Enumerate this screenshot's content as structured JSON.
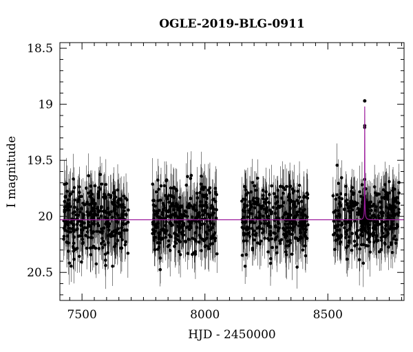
{
  "chart_data": {
    "type": "scatter",
    "title": "OGLE-2019-BLG-0911",
    "xlabel": "HJD - 2450000",
    "ylabel": "I magnitude",
    "xlim": [
      7410,
      8810
    ],
    "ylim": [
      18.45,
      20.75
    ],
    "y_inverted": true,
    "x_ticks": [
      7500,
      8000,
      8500
    ],
    "y_ticks": [
      18.5,
      19,
      19.5,
      20,
      20.5
    ],
    "x_tick_labels": [
      "7500",
      "8000",
      "8500"
    ],
    "y_tick_labels": [
      "18.5",
      "19",
      "19.5",
      "20",
      "20.5"
    ],
    "grid": false,
    "colors": {
      "points": "#000000",
      "model": "#9c1c9c"
    },
    "series": [
      {
        "kind": "photometry",
        "error_bars": true,
        "seasons": [
          {
            "x_range": [
              7425,
              7690
            ],
            "baseline_mag": 20.02,
            "scatter_mag": 0.2,
            "typical_error": 0.18
          },
          {
            "x_range": [
              7785,
              8050
            ],
            "baseline_mag": 20.02,
            "scatter_mag": 0.2,
            "typical_error": 0.18
          },
          {
            "x_range": [
              8150,
              8420
            ],
            "baseline_mag": 20.02,
            "scatter_mag": 0.2,
            "typical_error": 0.18
          },
          {
            "x_range": [
              8520,
              8790
            ],
            "baseline_mag": 20.02,
            "scatter_mag": 0.2,
            "typical_error": 0.18
          }
        ],
        "peak": {
          "x": 8650,
          "mag": 18.97
        }
      },
      {
        "kind": "model",
        "baseline_mag": 20.03,
        "peak_x": 8650,
        "peak_mag": 19.02,
        "tE_days": 12
      }
    ]
  }
}
